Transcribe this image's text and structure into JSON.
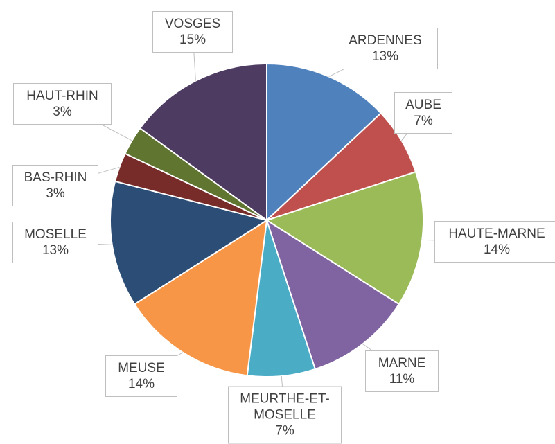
{
  "chart_data": {
    "type": "pie",
    "categories": [
      "ARDENNES",
      "AUBE",
      "HAUTE-MARNE",
      "MARNE",
      "MEURTHE-ET-MOSELLE",
      "MEUSE",
      "MOSELLE",
      "BAS-RHIN",
      "HAUT-RHIN",
      "VOSGES"
    ],
    "values": [
      13,
      7,
      14,
      11,
      7,
      14,
      13,
      3,
      3,
      15
    ],
    "value_labels": [
      "13%",
      "7%",
      "14%",
      "11%",
      "7%",
      "14%",
      "13%",
      "3%",
      "3%",
      "15%"
    ],
    "colors": [
      "#4f81bd",
      "#c0504d",
      "#9bbb59",
      "#8064a2",
      "#4bacc6",
      "#f79646",
      "#2c4d75",
      "#772c2a",
      "#5f7530",
      "#4d3b62"
    ]
  }
}
